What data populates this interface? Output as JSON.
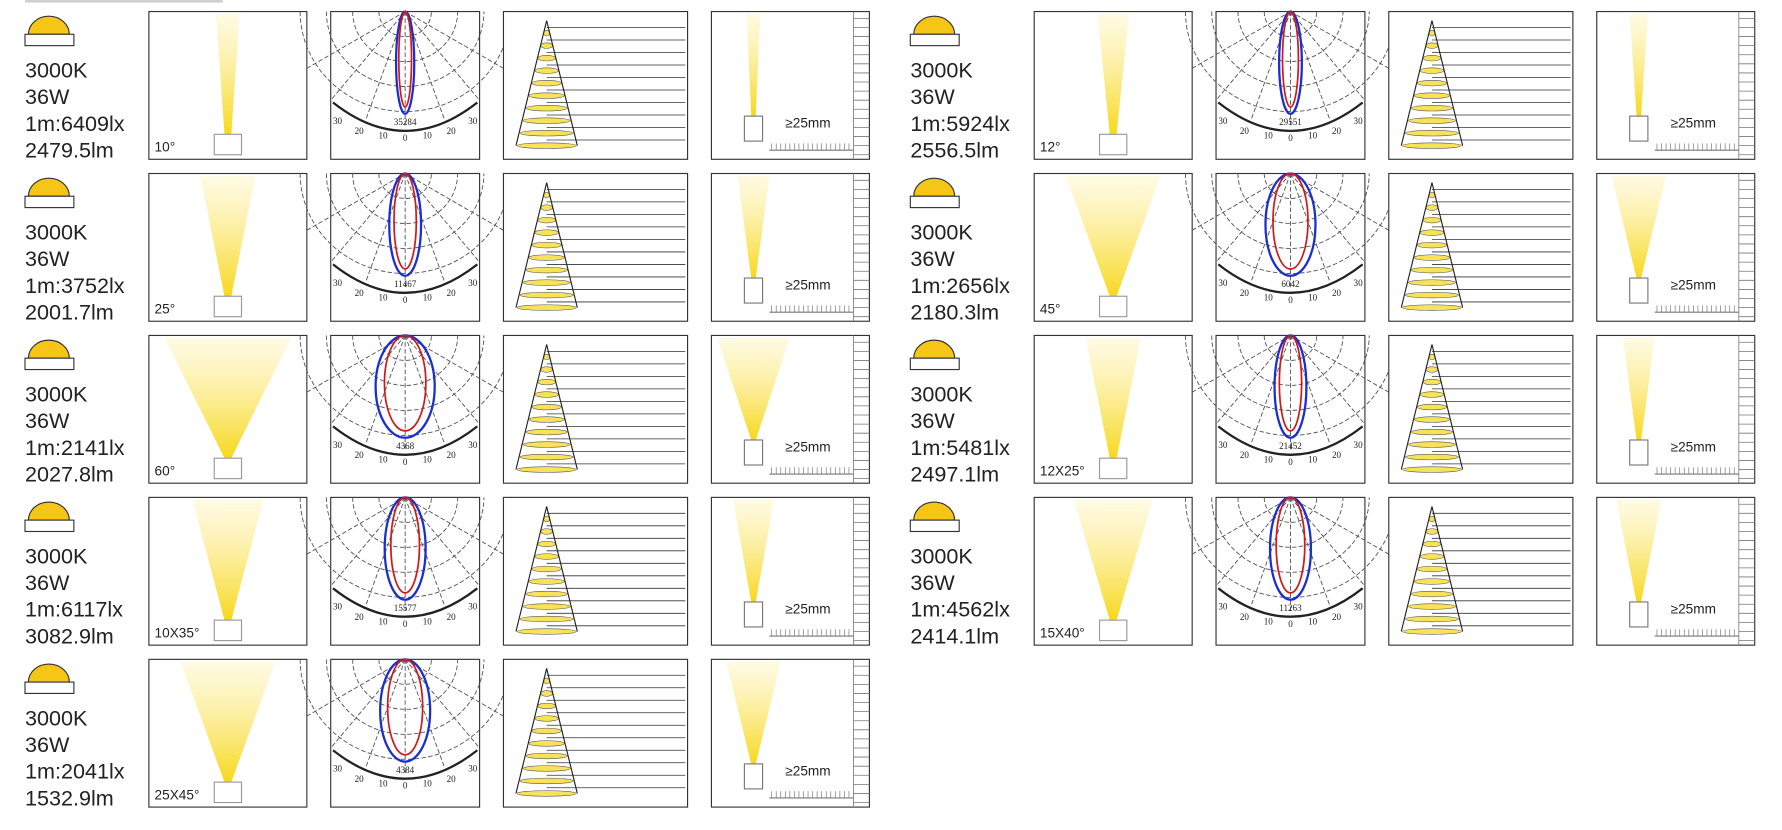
{
  "polar_axis_labels": [
    "30",
    "20",
    "10",
    "0"
  ],
  "entries": [
    {
      "cct": "3000K",
      "power": "36W",
      "illuminance": "1m:6409lx",
      "flux": "2479.5lm",
      "beam": "10°",
      "polar_peak": "35284",
      "gap": "≥25mm"
    },
    {
      "cct": "3000K",
      "power": "36W",
      "illuminance": "1m:3752lx",
      "flux": "2001.7lm",
      "beam": "25°",
      "polar_peak": "11467",
      "gap": "≥25mm"
    },
    {
      "cct": "3000K",
      "power": "36W",
      "illuminance": "1m:2141lx",
      "flux": "2027.8lm",
      "beam": "60°",
      "polar_peak": "4368",
      "gap": "≥25mm"
    },
    {
      "cct": "3000K",
      "power": "36W",
      "illuminance": "1m:6117lx",
      "flux": "3082.9lm",
      "beam": "10X35°",
      "polar_peak": "15577",
      "gap": "≥25mm"
    },
    {
      "cct": "3000K",
      "power": "36W",
      "illuminance": "1m:2041lx",
      "flux": "1532.9lm",
      "beam": "25X45°",
      "polar_peak": "4384",
      "gap": "≥25mm"
    },
    {
      "cct": "3000K",
      "power": "36W",
      "illuminance": "1m:5924lx",
      "flux": "2556.5lm",
      "beam": "12°",
      "polar_peak": "29551",
      "gap": "≥25mm"
    },
    {
      "cct": "3000K",
      "power": "36W",
      "illuminance": "1m:2656lx",
      "flux": "2180.3lm",
      "beam": "45°",
      "polar_peak": "6042",
      "gap": "≥25mm"
    },
    {
      "cct": "3000K",
      "power": "36W",
      "illuminance": "1m:5481lx",
      "flux": "2497.1lm",
      "beam": "12X25°",
      "polar_peak": "21452",
      "gap": "≥25mm"
    },
    {
      "cct": "3000K",
      "power": "36W",
      "illuminance": "1m:4562lx",
      "flux": "2414.1lm",
      "beam": "15X40°",
      "polar_peak": "11263",
      "gap": "≥25mm"
    }
  ]
}
